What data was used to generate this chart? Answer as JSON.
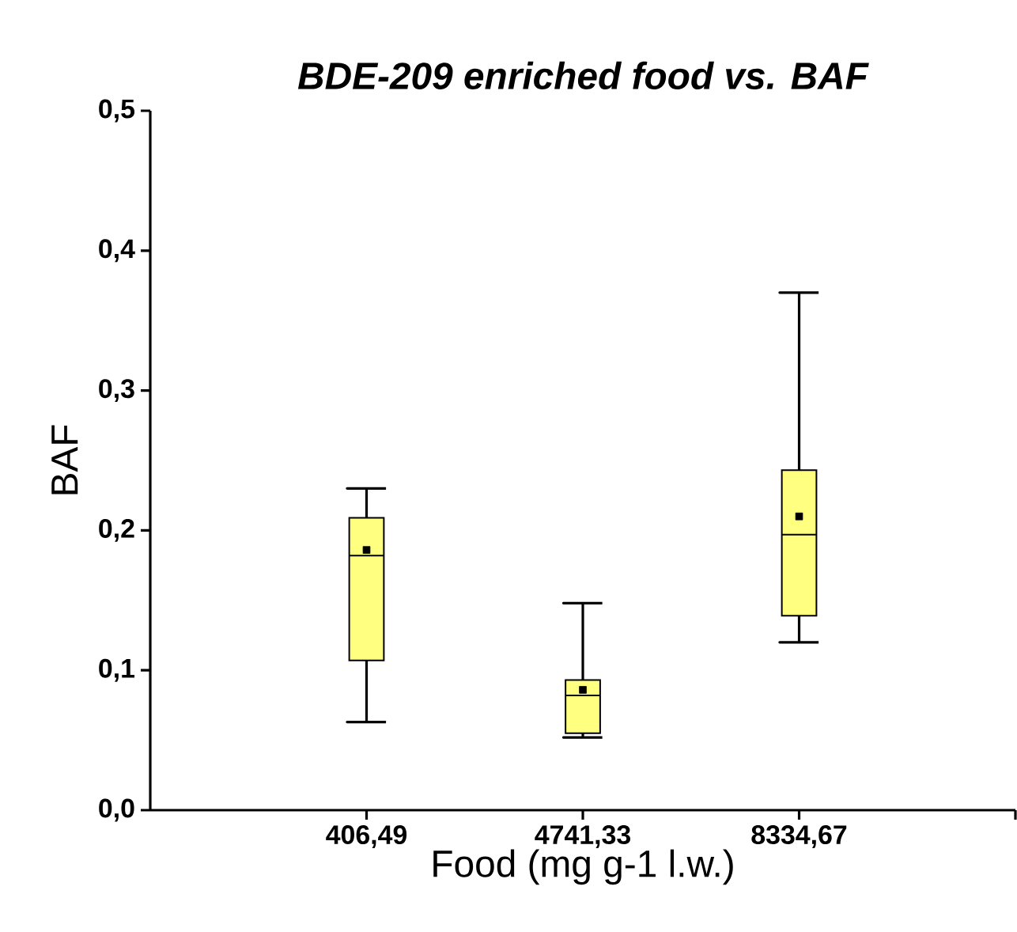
{
  "chart_data": {
    "type": "box",
    "title": "BDE-209 enriched food vs. BAF",
    "xlabel": "Food (mg g-1 l.w.)",
    "ylabel": "BAF",
    "categories": [
      "406,49",
      "4741,33",
      "8334,67"
    ],
    "color": "#ffff80",
    "boxes": [
      {
        "low": 0.063,
        "q1": 0.107,
        "median": 0.182,
        "q3": 0.209,
        "high": 0.23,
        "mean": 0.186
      },
      {
        "low": 0.052,
        "q1": 0.055,
        "median": 0.082,
        "q3": 0.093,
        "high": 0.148,
        "mean": 0.086
      },
      {
        "low": 0.12,
        "q1": 0.139,
        "median": 0.197,
        "q3": 0.243,
        "high": 0.37,
        "mean": 0.21
      }
    ],
    "ylim": [
      0,
      0.5
    ],
    "yticks": [
      {
        "value": 0,
        "label": "0,0"
      },
      {
        "value": 0.1,
        "label": "0,1"
      },
      {
        "value": 0.2,
        "label": "0,2"
      },
      {
        "value": 0.3,
        "label": "0,3"
      },
      {
        "value": 0.4,
        "label": "0,4"
      },
      {
        "value": 0.5,
        "label": "0,5"
      }
    ]
  }
}
